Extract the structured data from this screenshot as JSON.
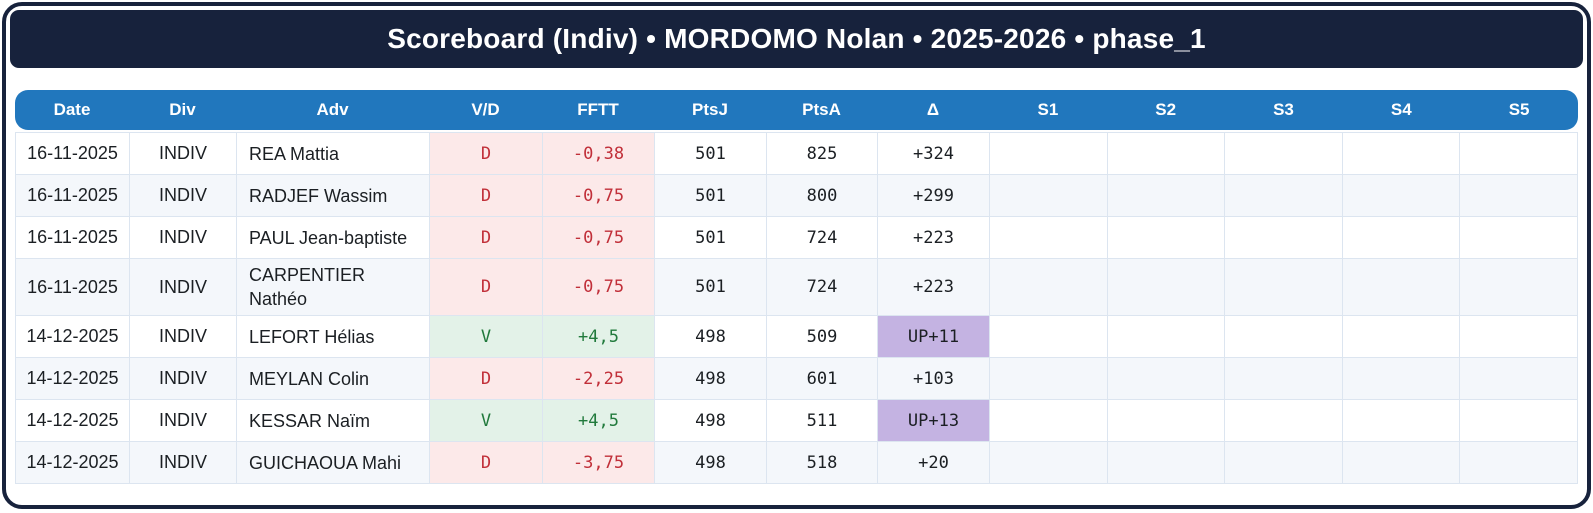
{
  "title": "Scoreboard (Indiv) • MORDOMO Nolan • 2025-2026 • phase_1",
  "colors": {
    "frame_navy": "#17223C",
    "header_blue": "#2177BD",
    "loss_text": "#C12F39",
    "loss_bg": "#FCE9E9",
    "win_text": "#217A3C",
    "win_bg": "#E3F2E8",
    "up_bg": "#C4B3E2",
    "row_alt_bg": "#F4F7FB",
    "grid_border": "#DCE5F0"
  },
  "table": {
    "columns": [
      "Date",
      "Div",
      "Adv",
      "V/D",
      "FFTT",
      "PtsJ",
      "PtsA",
      "Δ",
      "S1",
      "S2",
      "S3",
      "S4",
      "S5"
    ],
    "column_keys": [
      "date",
      "div",
      "adv",
      "vd",
      "fftt",
      "ptsj",
      "ptsa",
      "delta",
      "s1",
      "s2",
      "s3",
      "s4",
      "s5"
    ],
    "rows": [
      {
        "date": "16-11-2025",
        "div": "INDIV",
        "adv": "REA Mattia",
        "vd": "D",
        "fftt": "-0,38",
        "ptsj": "501",
        "ptsa": "825",
        "delta": "+324",
        "s1": "",
        "s2": "",
        "s3": "",
        "s4": "",
        "s5": ""
      },
      {
        "date": "16-11-2025",
        "div": "INDIV",
        "adv": "RADJEF Wassim",
        "vd": "D",
        "fftt": "-0,75",
        "ptsj": "501",
        "ptsa": "800",
        "delta": "+299",
        "s1": "",
        "s2": "",
        "s3": "",
        "s4": "",
        "s5": ""
      },
      {
        "date": "16-11-2025",
        "div": "INDIV",
        "adv": "PAUL Jean-baptiste",
        "vd": "D",
        "fftt": "-0,75",
        "ptsj": "501",
        "ptsa": "724",
        "delta": "+223",
        "s1": "",
        "s2": "",
        "s3": "",
        "s4": "",
        "s5": ""
      },
      {
        "date": "16-11-2025",
        "div": "INDIV",
        "adv": "CARPENTIER Nathéo",
        "vd": "D",
        "fftt": "-0,75",
        "ptsj": "501",
        "ptsa": "724",
        "delta": "+223",
        "s1": "",
        "s2": "",
        "s3": "",
        "s4": "",
        "s5": ""
      },
      {
        "date": "14-12-2025",
        "div": "INDIV",
        "adv": "LEFORT Hélias",
        "vd": "V",
        "fftt": "+4,5",
        "ptsj": "498",
        "ptsa": "509",
        "delta": "UP+11",
        "s1": "",
        "s2": "",
        "s3": "",
        "s4": "",
        "s5": ""
      },
      {
        "date": "14-12-2025",
        "div": "INDIV",
        "adv": "MEYLAN Colin",
        "vd": "D",
        "fftt": "-2,25",
        "ptsj": "498",
        "ptsa": "601",
        "delta": "+103",
        "s1": "",
        "s2": "",
        "s3": "",
        "s4": "",
        "s5": ""
      },
      {
        "date": "14-12-2025",
        "div": "INDIV",
        "adv": "KESSAR Naïm",
        "vd": "V",
        "fftt": "+4,5",
        "ptsj": "498",
        "ptsa": "511",
        "delta": "UP+13",
        "s1": "",
        "s2": "",
        "s3": "",
        "s4": "",
        "s5": ""
      },
      {
        "date": "14-12-2025",
        "div": "INDIV",
        "adv": "GUICHAOUA Mahi",
        "vd": "D",
        "fftt": "-3,75",
        "ptsj": "498",
        "ptsa": "518",
        "delta": "+20",
        "s1": "",
        "s2": "",
        "s3": "",
        "s4": "",
        "s5": ""
      }
    ]
  }
}
